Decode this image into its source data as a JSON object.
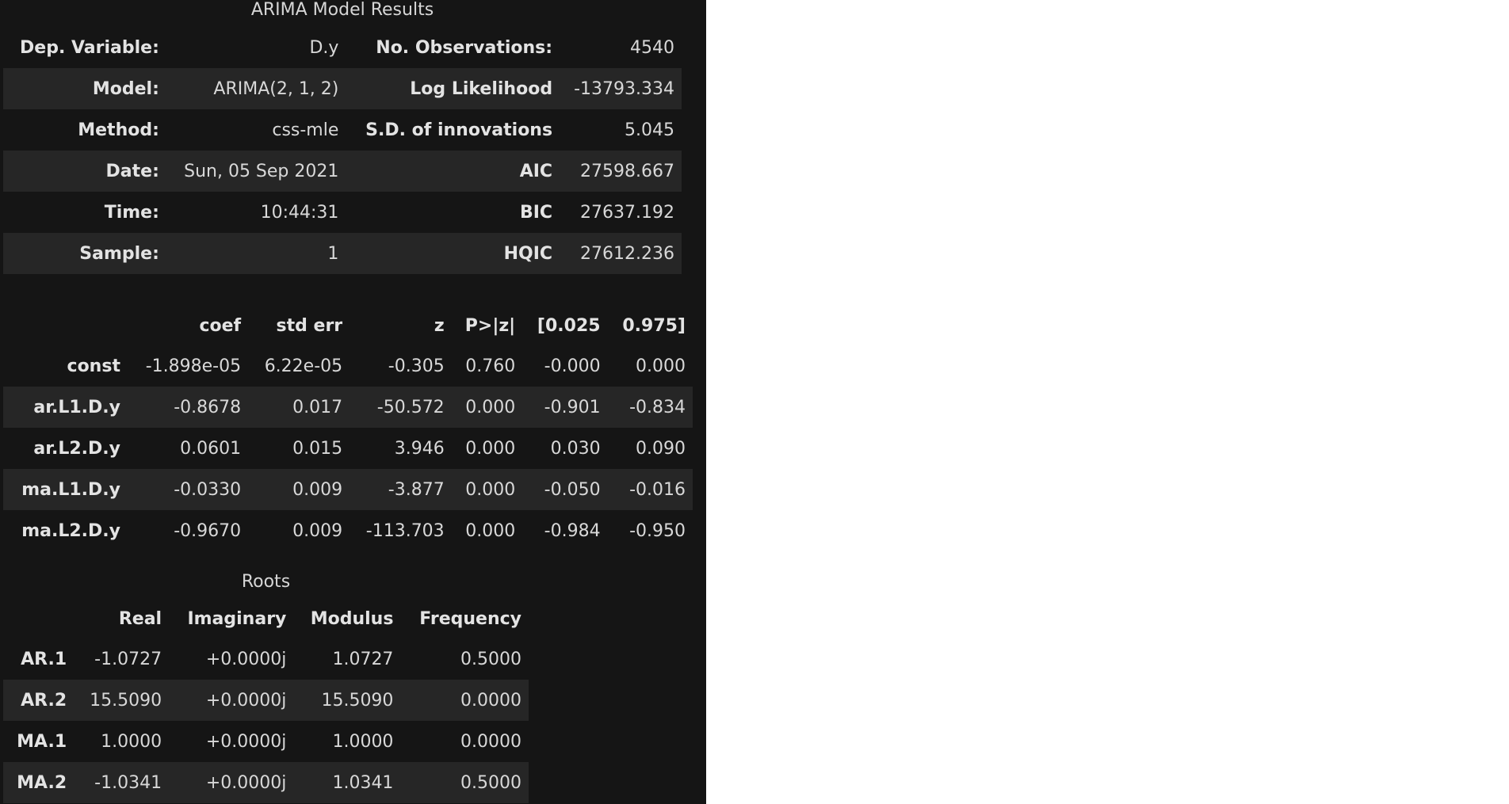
{
  "summary": {
    "title": "ARIMA Model Results",
    "rows": [
      [
        "Dep. Variable:",
        "D.y",
        "No. Observations:",
        "4540"
      ],
      [
        "Model:",
        "ARIMA(2, 1, 2)",
        "Log Likelihood",
        "-13793.334"
      ],
      [
        "Method:",
        "css-mle",
        "S.D. of innovations",
        "5.045"
      ],
      [
        "Date:",
        "Sun, 05 Sep 2021",
        "AIC",
        "27598.667"
      ],
      [
        "Time:",
        "10:44:31",
        "BIC",
        "27637.192"
      ],
      [
        "Sample:",
        "1",
        "HQIC",
        "27612.236"
      ]
    ]
  },
  "coefficients": {
    "headers": [
      "",
      "coef",
      "std err",
      "z",
      "P>|z|",
      "[0.025",
      "0.975]"
    ],
    "rows": [
      [
        "const",
        "-1.898e-05",
        "6.22e-05",
        "-0.305",
        "0.760",
        "-0.000",
        "0.000"
      ],
      [
        "ar.L1.D.y",
        "-0.8678",
        "0.017",
        "-50.572",
        "0.000",
        "-0.901",
        "-0.834"
      ],
      [
        "ar.L2.D.y",
        "0.0601",
        "0.015",
        "3.946",
        "0.000",
        "0.030",
        "0.090"
      ],
      [
        "ma.L1.D.y",
        "-0.0330",
        "0.009",
        "-3.877",
        "0.000",
        "-0.050",
        "-0.016"
      ],
      [
        "ma.L2.D.y",
        "-0.9670",
        "0.009",
        "-113.703",
        "0.000",
        "-0.984",
        "-0.950"
      ]
    ]
  },
  "roots": {
    "title": "Roots",
    "headers": [
      "",
      "Real",
      "Imaginary",
      "Modulus",
      "Frequency"
    ],
    "rows": [
      [
        "AR.1",
        "-1.0727",
        "+0.0000j",
        "1.0727",
        "0.5000"
      ],
      [
        "AR.2",
        "15.5090",
        "+0.0000j",
        "15.5090",
        "0.0000"
      ],
      [
        "MA.1",
        "1.0000",
        "+0.0000j",
        "1.0000",
        "0.0000"
      ],
      [
        "MA.2",
        "-1.0341",
        "+0.0000j",
        "1.0341",
        "0.5000"
      ]
    ]
  },
  "colors": {
    "panel_background": "#151515",
    "stripe_row": "#262626",
    "page_background": "#ffffff"
  }
}
